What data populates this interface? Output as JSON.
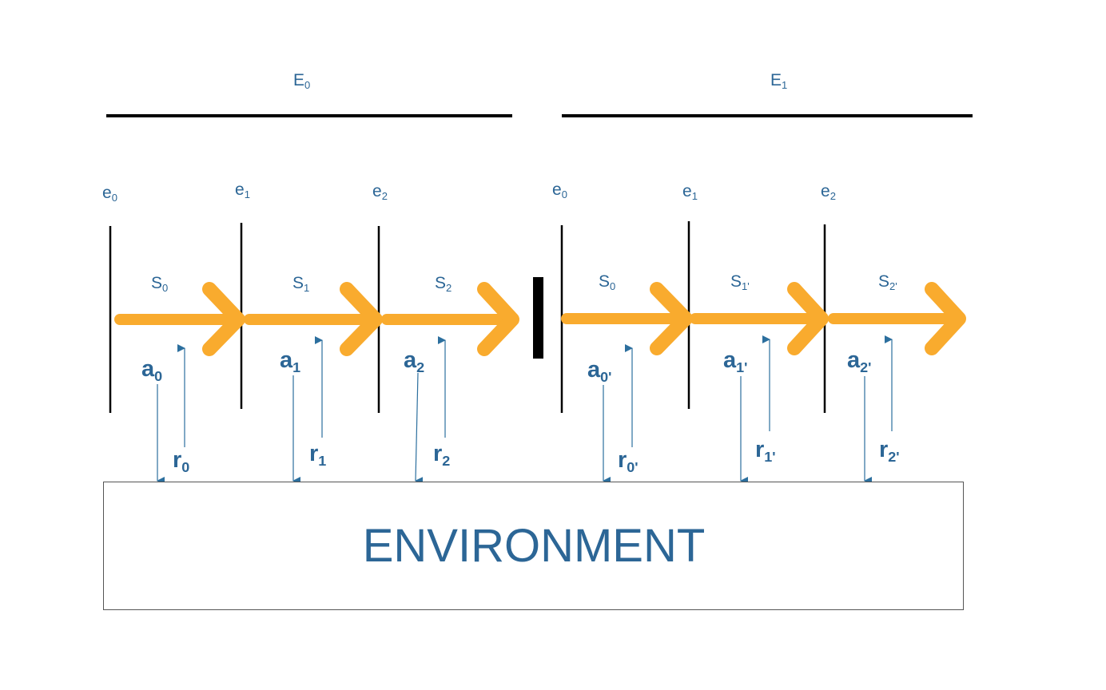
{
  "episodes": [
    {
      "base": "E",
      "sub": "0"
    },
    {
      "base": "E",
      "sub": "1"
    }
  ],
  "episode_steps": [
    {
      "base": "e",
      "sub": "0"
    },
    {
      "base": "e",
      "sub": "1"
    },
    {
      "base": "e",
      "sub": "2"
    },
    {
      "base": "e",
      "sub": "0"
    },
    {
      "base": "e",
      "sub": "1"
    },
    {
      "base": "e",
      "sub": "2"
    }
  ],
  "states": [
    {
      "base": "S",
      "sub": "0"
    },
    {
      "base": "S",
      "sub": "1"
    },
    {
      "base": "S",
      "sub": "2"
    },
    {
      "base": "S",
      "sub": "0"
    },
    {
      "base": "S",
      "sub": "1'"
    },
    {
      "base": "S",
      "sub": "2'"
    }
  ],
  "actions": [
    {
      "base": "a",
      "sub": "0"
    },
    {
      "base": "a",
      "sub": "1"
    },
    {
      "base": "a",
      "sub": "2"
    },
    {
      "base": "a",
      "sub": "0'"
    },
    {
      "base": "a",
      "sub": "1'"
    },
    {
      "base": "a",
      "sub": "2'"
    }
  ],
  "rewards": [
    {
      "base": "r",
      "sub": "0"
    },
    {
      "base": "r",
      "sub": "1"
    },
    {
      "base": "r",
      "sub": "2"
    },
    {
      "base": "r",
      "sub": "0'"
    },
    {
      "base": "r",
      "sub": "1'"
    },
    {
      "base": "r",
      "sub": "2'"
    }
  ],
  "environment_label": "ENVIRONMENT",
  "colors": {
    "arrow": "#f9ab2e",
    "text": "#2c6696",
    "line": "#000000",
    "signal": "#2c6f9e"
  }
}
